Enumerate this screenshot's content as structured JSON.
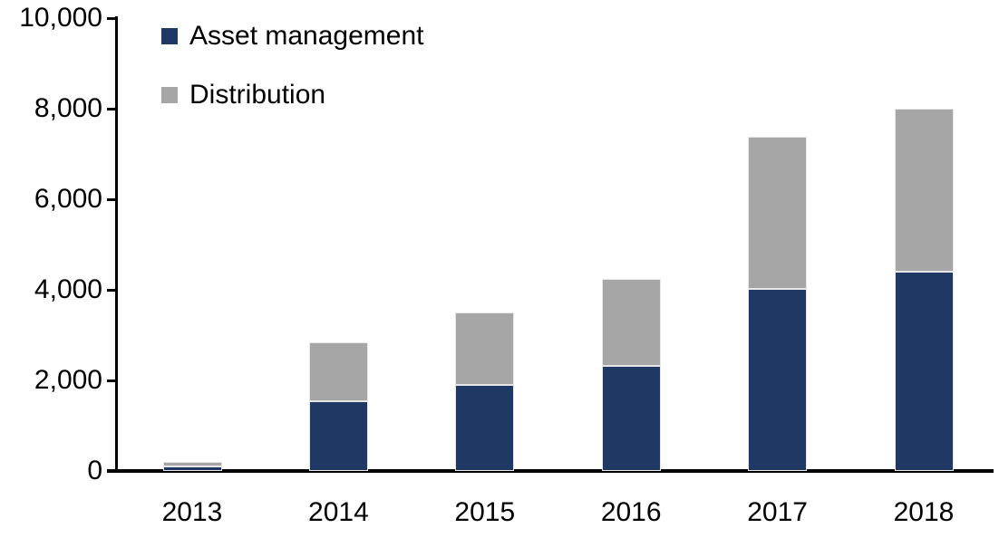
{
  "chart_data": {
    "type": "bar",
    "stacked": true,
    "title": "",
    "xlabel": "",
    "ylabel": "",
    "categories": [
      "2013",
      "2014",
      "2015",
      "2016",
      "2017",
      "2018"
    ],
    "series": [
      {
        "name": "Asset management",
        "color": "#1F3864",
        "values": [
          100,
          1550,
          1900,
          2320,
          4030,
          4400
        ]
      },
      {
        "name": "Distribution",
        "color": "#A6A6A6",
        "values": [
          95,
          1300,
          1600,
          1930,
          3350,
          3600
        ]
      }
    ],
    "totals": [
      195,
      2850,
      3500,
      4250,
      7380,
      8000
    ],
    "ylim": [
      0,
      10000
    ],
    "ytick_step": 2000,
    "ytick_labels": [
      "0",
      "2,000",
      "4,000",
      "6,000",
      "8,000",
      "10,000"
    ],
    "grid": false,
    "legend_position": "top-left-inside"
  },
  "colors": {
    "asset_management": "#1F3864",
    "distribution": "#A6A6A6",
    "axis": "#000000",
    "background": "#FFFFFF",
    "bar_edge": "#E8E7E7"
  }
}
